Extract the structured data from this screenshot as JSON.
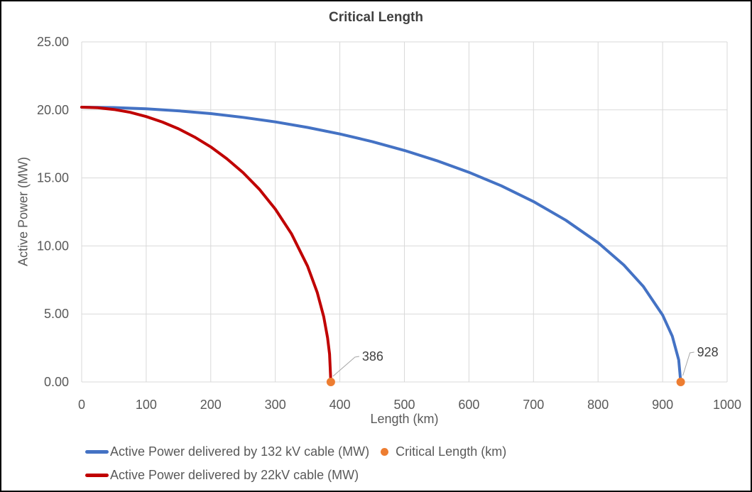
{
  "chart_data": {
    "type": "line",
    "title": "Critical Length",
    "xlabel": "Length (km)",
    "ylabel": "Active Power (MW)",
    "xlim": [
      0,
      1000
    ],
    "ylim": [
      0,
      25
    ],
    "grid": true,
    "legend_position": "bottom",
    "x_ticks": [
      "0",
      "100",
      "200",
      "300",
      "400",
      "500",
      "600",
      "700",
      "800",
      "900",
      "1000"
    ],
    "y_ticks": [
      "0.00",
      "5.00",
      "10.00",
      "15.00",
      "20.00",
      "25.00"
    ],
    "colors": {
      "grid": "#D9D9D9",
      "tick_text": "#595959",
      "title_text": "#404040",
      "annotation_text": "#404040",
      "leader_line": "#A6A6A6",
      "blue_series": "#4472C4",
      "red_series": "#C00000",
      "marker_orange": "#ED7D31",
      "frame_border": "#000000"
    },
    "series": [
      {
        "id": "132kv-cable",
        "name": "Active Power delivered by 132 kV cable (MW)",
        "color": "#4472C4",
        "width": 4,
        "points": [
          [
            0,
            20.2
          ],
          [
            50,
            20.17
          ],
          [
            100,
            20.08
          ],
          [
            150,
            19.93
          ],
          [
            200,
            19.73
          ],
          [
            250,
            19.45
          ],
          [
            300,
            19.12
          ],
          [
            350,
            18.71
          ],
          [
            400,
            18.23
          ],
          [
            450,
            17.67
          ],
          [
            500,
            17.02
          ],
          [
            550,
            16.27
          ],
          [
            600,
            15.41
          ],
          [
            650,
            14.42
          ],
          [
            700,
            13.26
          ],
          [
            750,
            11.89
          ],
          [
            800,
            10.24
          ],
          [
            840,
            8.59
          ],
          [
            870,
            7.03
          ],
          [
            900,
            4.92
          ],
          [
            915,
            3.37
          ],
          [
            925,
            1.62
          ],
          [
            928,
            0
          ]
        ]
      },
      {
        "id": "22kv-cable",
        "name": "Active Power delivered by 22kV cable (MW)",
        "color": "#C00000",
        "width": 4,
        "points": [
          [
            0,
            20.2
          ],
          [
            25,
            20.16
          ],
          [
            50,
            20.03
          ],
          [
            75,
            19.82
          ],
          [
            100,
            19.51
          ],
          [
            125,
            19.11
          ],
          [
            150,
            18.61
          ],
          [
            175,
            18.0
          ],
          [
            200,
            17.28
          ],
          [
            225,
            16.41
          ],
          [
            250,
            15.39
          ],
          [
            275,
            14.18
          ],
          [
            300,
            12.71
          ],
          [
            325,
            10.9
          ],
          [
            350,
            8.52
          ],
          [
            365,
            6.57
          ],
          [
            375,
            4.79
          ],
          [
            381,
            3.24
          ],
          [
            384,
            2.05
          ],
          [
            386,
            0
          ]
        ]
      }
    ],
    "scatter": {
      "name": "Critical Length (km)",
      "color": "#ED7D31",
      "marker_radius": 6,
      "points": [
        [
          386,
          0
        ],
        [
          928,
          0
        ]
      ]
    },
    "annotations": [
      {
        "text": "386",
        "x": 386,
        "y": 0,
        "leader": [
          [
            3,
            -8
          ],
          [
            34,
            -35
          ],
          [
            40,
            -36
          ]
        ],
        "label_offset": [
          44,
          -30
        ]
      },
      {
        "text": "928",
        "x": 928,
        "y": 0,
        "leader": [
          [
            3,
            -9
          ],
          [
            13,
            -41
          ],
          [
            19,
            -42
          ]
        ],
        "label_offset": [
          23,
          -36
        ]
      }
    ]
  },
  "legend": {
    "items": [
      {
        "label": "Active Power delivered by 132 kV cable (MW)",
        "color": "#4472C4",
        "swatch": "line",
        "name": "legend-item-132kv-cable"
      },
      {
        "label": "Critical Length (km)",
        "color": "#ED7D31",
        "swatch": "dot",
        "name": "legend-item-critical-length"
      },
      {
        "label": "Active Power delivered by 22kV cable (MW)",
        "color": "#C00000",
        "swatch": "line",
        "name": "legend-item-22kv-cable"
      }
    ]
  }
}
